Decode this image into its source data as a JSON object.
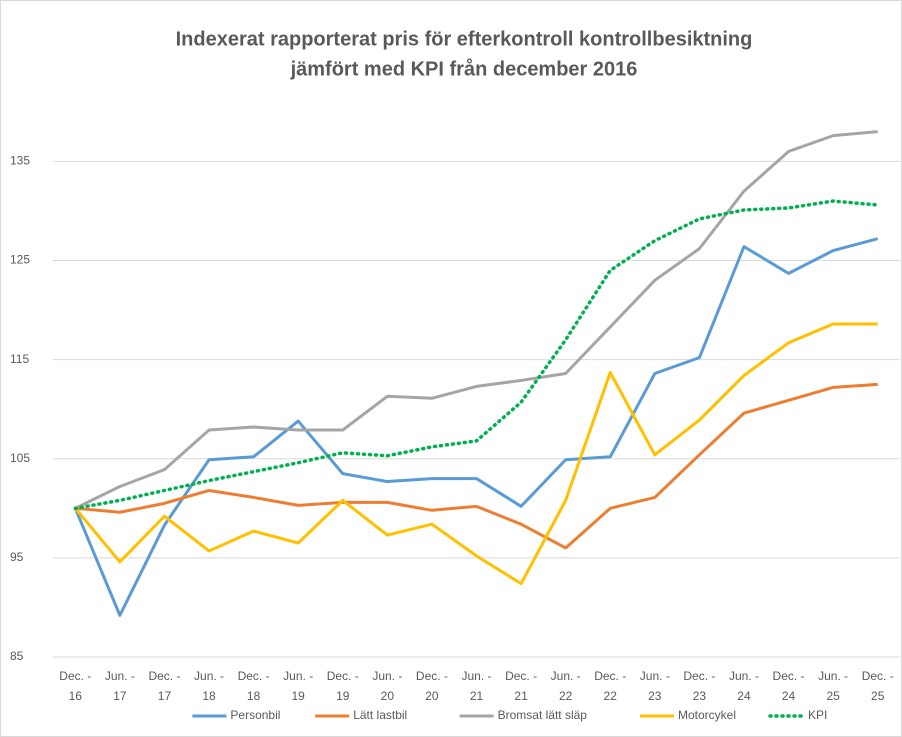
{
  "chart_data": {
    "type": "line",
    "title": [
      "Indexerat rapporterat pris för efterkontroll kontrollbesiktning",
      "jämfört med KPI från december 2016"
    ],
    "categories": [
      [
        "Dec. -",
        "16"
      ],
      [
        "Jun. -",
        "17"
      ],
      [
        "Dec. -",
        "17"
      ],
      [
        "Jun. -",
        "18"
      ],
      [
        "Dec. -",
        "18"
      ],
      [
        "Jun. -",
        "19"
      ],
      [
        "Dec. -",
        "19"
      ],
      [
        "Jun. -",
        "20"
      ],
      [
        "Dec. -",
        "20"
      ],
      [
        "Jun. -",
        "21"
      ],
      [
        "Dec. -",
        "21"
      ],
      [
        "Jun. -",
        "22"
      ],
      [
        "Dec. -",
        "22"
      ],
      [
        "Jun. -",
        "23"
      ],
      [
        "Dec. -",
        "23"
      ],
      [
        "Jun. -",
        "24"
      ],
      [
        "Dec. -",
        "24"
      ],
      [
        "Jun. -",
        "25"
      ],
      [
        "Dec. -",
        "25"
      ]
    ],
    "series": [
      {
        "name": "Personbil",
        "color": "#5b9bd5",
        "dash": false,
        "values": [
          100,
          89.2,
          98.3,
          104.9,
          105.2,
          108.8,
          103.5,
          102.7,
          103.0,
          103.0,
          100.2,
          104.9,
          105.2,
          113.6,
          115.2,
          126.4,
          123.7,
          126.0,
          127.2
        ]
      },
      {
        "name": "Lätt lastbil",
        "color": "#ed7d31",
        "dash": false,
        "values": [
          100,
          99.6,
          100.5,
          101.8,
          101.1,
          100.3,
          100.6,
          100.6,
          99.8,
          100.2,
          98.4,
          96.0,
          100.0,
          101.1,
          105.4,
          109.6,
          110.9,
          112.2,
          112.5
        ]
      },
      {
        "name": "Bromsat lätt släp",
        "color": "#a5a5a5",
        "dash": false,
        "values": [
          100,
          102.2,
          103.9,
          107.9,
          108.2,
          107.9,
          107.9,
          111.3,
          111.1,
          112.3,
          112.9,
          113.6,
          118.3,
          123.0,
          126.2,
          132.0,
          136.0,
          137.6,
          138.0
        ]
      },
      {
        "name": "Motorcykel",
        "color": "#ffc000",
        "dash": false,
        "values": [
          100,
          94.6,
          99.2,
          95.7,
          97.7,
          96.5,
          100.8,
          97.3,
          98.4,
          95.2,
          92.4,
          100.8,
          113.7,
          105.4,
          108.9,
          113.4,
          116.7,
          118.6,
          118.6
        ]
      },
      {
        "name": "KPI",
        "color": "#00b050",
        "dash": true,
        "values": [
          100,
          100.8,
          101.8,
          102.8,
          103.7,
          104.6,
          105.6,
          105.3,
          106.2,
          106.8,
          110.7,
          117.0,
          124.0,
          127.0,
          129.2,
          130.1,
          130.3,
          131.0,
          130.6
        ]
      }
    ],
    "ylim": [
      85,
      142
    ],
    "yticks": [
      85,
      95,
      105,
      115,
      125,
      135
    ],
    "grid": true,
    "legend": "bottom"
  }
}
